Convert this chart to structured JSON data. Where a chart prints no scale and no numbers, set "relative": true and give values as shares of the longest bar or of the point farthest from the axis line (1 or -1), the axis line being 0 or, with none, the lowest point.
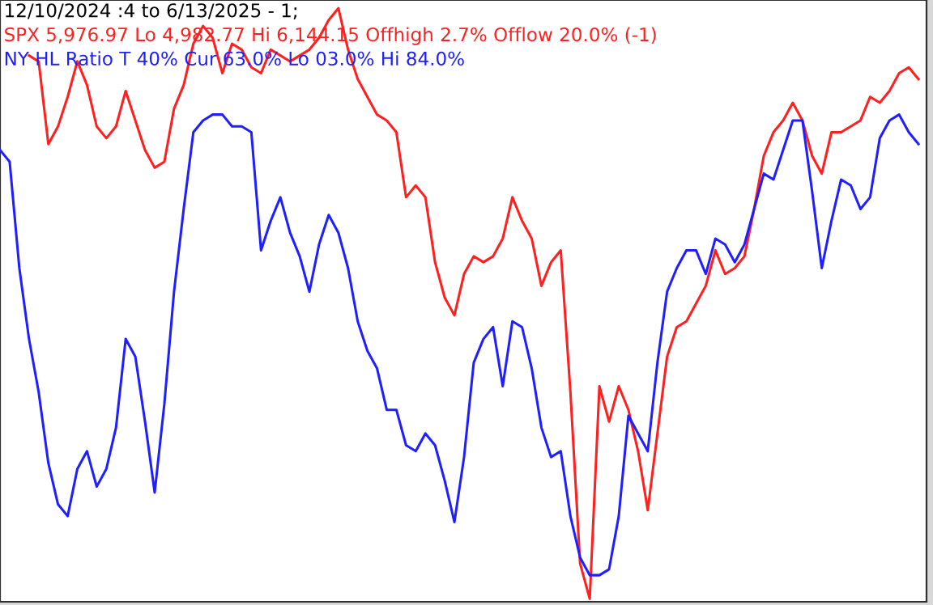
{
  "chart_data": {
    "type": "line",
    "relative": true,
    "title": "12/10/2024 :4 to 6/13/2025 - 1;",
    "categories": [
      null,
      null,
      null,
      null,
      null,
      null,
      null,
      null,
      null,
      null,
      null,
      null,
      null,
      null,
      null,
      null,
      null,
      null,
      null,
      null,
      null,
      null,
      null,
      null,
      null,
      null,
      null,
      null,
      null,
      null,
      null,
      null,
      null,
      null,
      null,
      null,
      null,
      null,
      null,
      null,
      null,
      null,
      null,
      null,
      null,
      null,
      null,
      null,
      null,
      null,
      null,
      null,
      null,
      null,
      null,
      null,
      null,
      null,
      null,
      null,
      null,
      null,
      null,
      null,
      null,
      null,
      null,
      null,
      null,
      null,
      null,
      null,
      null,
      null,
      null,
      null,
      null,
      null,
      null,
      null,
      null,
      null,
      null,
      null,
      null,
      null,
      null,
      null,
      null,
      null,
      null,
      null,
      null,
      null,
      null,
      null
    ],
    "series": [
      {
        "name": "SPX 5,976.97 Lo 4,982.77 Hi 6,144.15 Offhigh 2.7% Offlow 20.0% (-1)",
        "color": "#ff2020",
        "values": [
          null,
          null,
          null,
          0.92,
          0.91,
          0.77,
          0.8,
          0.85,
          0.91,
          0.87,
          0.8,
          0.78,
          0.8,
          0.86,
          0.81,
          0.76,
          0.73,
          0.74,
          0.83,
          0.87,
          0.94,
          0.97,
          0.95,
          0.89,
          0.94,
          0.93,
          0.9,
          0.89,
          0.93,
          0.92,
          0.91,
          0.92,
          0.93,
          0.95,
          0.98,
          1.0,
          0.93,
          0.88,
          0.85,
          0.82,
          0.81,
          0.79,
          0.68,
          0.7,
          0.68,
          0.57,
          0.51,
          0.48,
          0.55,
          0.58,
          0.57,
          0.58,
          0.61,
          0.68,
          0.64,
          0.61,
          0.53,
          0.57,
          0.59,
          0.35,
          0.06,
          0.0,
          0.36,
          0.3,
          0.36,
          0.32,
          0.25,
          0.15,
          0.28,
          0.41,
          0.46,
          0.47,
          0.5,
          0.53,
          0.59,
          0.55,
          0.56,
          0.58,
          0.66,
          0.75,
          0.79,
          0.81,
          0.84,
          0.81,
          0.75,
          0.72,
          0.79,
          0.79,
          0.8,
          0.81,
          0.85,
          0.84,
          0.86,
          0.89,
          0.9,
          0.88
        ]
      },
      {
        "name": "NY HL Ratio T 40% Cur 63.0% Lo 03.0% Hi 84.0%",
        "color": "#2020ff",
        "values": [
          0.76,
          0.74,
          0.56,
          0.44,
          0.35,
          0.23,
          0.16,
          0.14,
          0.22,
          0.25,
          0.19,
          0.22,
          0.29,
          0.44,
          0.41,
          0.3,
          0.18,
          0.33,
          0.52,
          0.66,
          0.79,
          0.81,
          0.82,
          0.82,
          0.8,
          0.8,
          0.79,
          0.59,
          0.64,
          0.68,
          0.62,
          0.58,
          0.52,
          0.6,
          0.65,
          0.62,
          0.56,
          0.47,
          0.42,
          0.39,
          0.32,
          0.32,
          0.26,
          0.25,
          0.28,
          0.26,
          0.2,
          0.13,
          0.24,
          0.4,
          0.44,
          0.46,
          0.36,
          0.47,
          0.46,
          0.39,
          0.29,
          0.24,
          0.25,
          0.14,
          0.07,
          0.04,
          0.04,
          0.05,
          0.14,
          0.31,
          0.28,
          0.25,
          0.4,
          0.52,
          0.56,
          0.59,
          0.59,
          0.55,
          0.61,
          0.6,
          0.57,
          0.6,
          0.66,
          0.72,
          0.71,
          0.76,
          0.81,
          0.81,
          0.69,
          0.56,
          0.64,
          0.71,
          0.7,
          0.66,
          0.68,
          0.78,
          0.81,
          0.82,
          0.79,
          0.77
        ]
      }
    ]
  }
}
